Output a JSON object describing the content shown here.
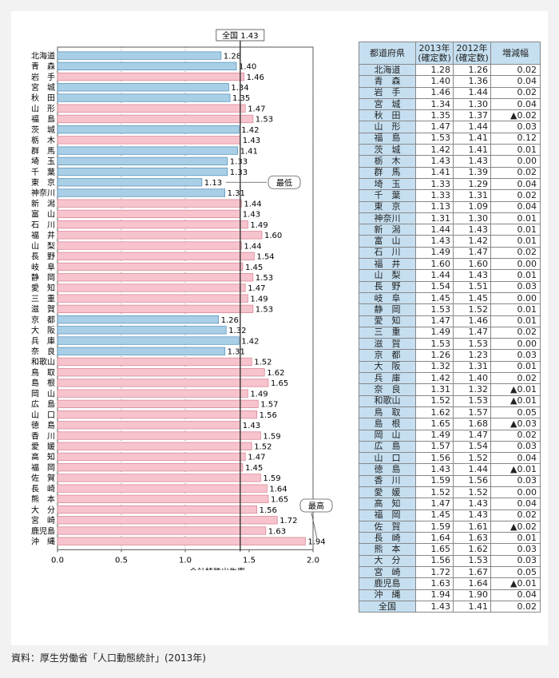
{
  "chart_data": {
    "type": "bar",
    "orientation": "horizontal",
    "xlabel": "合計特殊出生率",
    "xlim": [
      0,
      2.0
    ],
    "xticks": [
      "0.0",
      "0.5",
      "1.0",
      "1.5",
      "2.0"
    ],
    "reference_line": {
      "label": "全国",
      "value": 1.43
    },
    "annotations": {
      "min": "最低",
      "max": "最高"
    },
    "colors": {
      "above": "#f7c3cd",
      "below": "#a9cfe6",
      "border_above": "#d98a98",
      "border_below": "#5c95bd"
    },
    "categories": [
      "北海道",
      "青　森",
      "岩　手",
      "宮　城",
      "秋　田",
      "山　形",
      "福　島",
      "茨　城",
      "栃　木",
      "群　馬",
      "埼　玉",
      "千　葉",
      "東　京",
      "神奈川",
      "新　潟",
      "富　山",
      "石　川",
      "福　井",
      "山　梨",
      "長　野",
      "岐　阜",
      "静　岡",
      "愛　知",
      "三　重",
      "滋　賀",
      "京　都",
      "大　阪",
      "兵　庫",
      "奈　良",
      "和歌山",
      "鳥　取",
      "島　根",
      "岡　山",
      "広　島",
      "山　口",
      "徳　島",
      "香　川",
      "愛　媛",
      "高　知",
      "福　岡",
      "佐　賀",
      "長　崎",
      "熊　本",
      "大　分",
      "宮　崎",
      "鹿児島",
      "沖　縄"
    ],
    "values": [
      1.28,
      1.4,
      1.46,
      1.34,
      1.35,
      1.47,
      1.53,
      1.42,
      1.43,
      1.41,
      1.33,
      1.33,
      1.13,
      1.31,
      1.44,
      1.43,
      1.49,
      1.6,
      1.44,
      1.54,
      1.45,
      1.53,
      1.47,
      1.49,
      1.53,
      1.26,
      1.32,
      1.42,
      1.31,
      1.52,
      1.62,
      1.65,
      1.49,
      1.57,
      1.56,
      1.43,
      1.59,
      1.52,
      1.47,
      1.45,
      1.59,
      1.64,
      1.65,
      1.56,
      1.72,
      1.63,
      1.94
    ]
  },
  "table": {
    "headers": [
      "都道府県",
      "2013年\n(確定数)",
      "2012年\n(確定数)",
      "増減幅"
    ],
    "rows": [
      [
        "北海道",
        "1.28",
        "1.26",
        "0.02"
      ],
      [
        "青　森",
        "1.40",
        "1.36",
        "0.04"
      ],
      [
        "岩　手",
        "1.46",
        "1.44",
        "0.02"
      ],
      [
        "宮　城",
        "1.34",
        "1.30",
        "0.04"
      ],
      [
        "秋　田",
        "1.35",
        "1.37",
        "▲0.02"
      ],
      [
        "山　形",
        "1.47",
        "1.44",
        "0.03"
      ],
      [
        "福　島",
        "1.53",
        "1.41",
        "0.12"
      ],
      [
        "茨　城",
        "1.42",
        "1.41",
        "0.01"
      ],
      [
        "栃　木",
        "1.43",
        "1.43",
        "0.00"
      ],
      [
        "群　馬",
        "1.41",
        "1.39",
        "0.02"
      ],
      [
        "埼　玉",
        "1.33",
        "1.29",
        "0.04"
      ],
      [
        "千　葉",
        "1.33",
        "1.31",
        "0.02"
      ],
      [
        "東　京",
        "1.13",
        "1.09",
        "0.04"
      ],
      [
        "神奈川",
        "1.31",
        "1.30",
        "0.01"
      ],
      [
        "新　潟",
        "1.44",
        "1.43",
        "0.01"
      ],
      [
        "富　山",
        "1.43",
        "1.42",
        "0.01"
      ],
      [
        "石　川",
        "1.49",
        "1.47",
        "0.02"
      ],
      [
        "福　井",
        "1.60",
        "1.60",
        "0.00"
      ],
      [
        "山　梨",
        "1.44",
        "1.43",
        "0.01"
      ],
      [
        "長　野",
        "1.54",
        "1.51",
        "0.03"
      ],
      [
        "岐　阜",
        "1.45",
        "1.45",
        "0.00"
      ],
      [
        "静　岡",
        "1.53",
        "1.52",
        "0.01"
      ],
      [
        "愛　知",
        "1.47",
        "1.46",
        "0.01"
      ],
      [
        "三　重",
        "1.49",
        "1.47",
        "0.02"
      ],
      [
        "滋　賀",
        "1.53",
        "1.53",
        "0.00"
      ],
      [
        "京　都",
        "1.26",
        "1.23",
        "0.03"
      ],
      [
        "大　阪",
        "1.32",
        "1.31",
        "0.01"
      ],
      [
        "兵　庫",
        "1.42",
        "1.40",
        "0.02"
      ],
      [
        "奈　良",
        "1.31",
        "1.32",
        "▲0.01"
      ],
      [
        "和歌山",
        "1.52",
        "1.53",
        "▲0.01"
      ],
      [
        "鳥　取",
        "1.62",
        "1.57",
        "0.05"
      ],
      [
        "島　根",
        "1.65",
        "1.68",
        "▲0.03"
      ],
      [
        "岡　山",
        "1.49",
        "1.47",
        "0.02"
      ],
      [
        "広　島",
        "1.57",
        "1.54",
        "0.03"
      ],
      [
        "山　口",
        "1.56",
        "1.52",
        "0.04"
      ],
      [
        "徳　島",
        "1.43",
        "1.44",
        "▲0.01"
      ],
      [
        "香　川",
        "1.59",
        "1.56",
        "0.03"
      ],
      [
        "愛　媛",
        "1.52",
        "1.52",
        "0.00"
      ],
      [
        "高　知",
        "1.47",
        "1.43",
        "0.04"
      ],
      [
        "福　岡",
        "1.45",
        "1.43",
        "0.02"
      ],
      [
        "佐　賀",
        "1.59",
        "1.61",
        "▲0.02"
      ],
      [
        "長　崎",
        "1.64",
        "1.63",
        "0.01"
      ],
      [
        "熊　本",
        "1.65",
        "1.62",
        "0.03"
      ],
      [
        "大　分",
        "1.56",
        "1.53",
        "0.03"
      ],
      [
        "宮　崎",
        "1.72",
        "1.67",
        "0.05"
      ],
      [
        "鹿児島",
        "1.63",
        "1.64",
        "▲0.01"
      ],
      [
        "沖　縄",
        "1.94",
        "1.90",
        "0.04"
      ]
    ],
    "total": [
      "全国",
      "1.43",
      "1.41",
      "0.02"
    ]
  },
  "source": "資料：厚生労働省「人口動態統計」(2013年)"
}
